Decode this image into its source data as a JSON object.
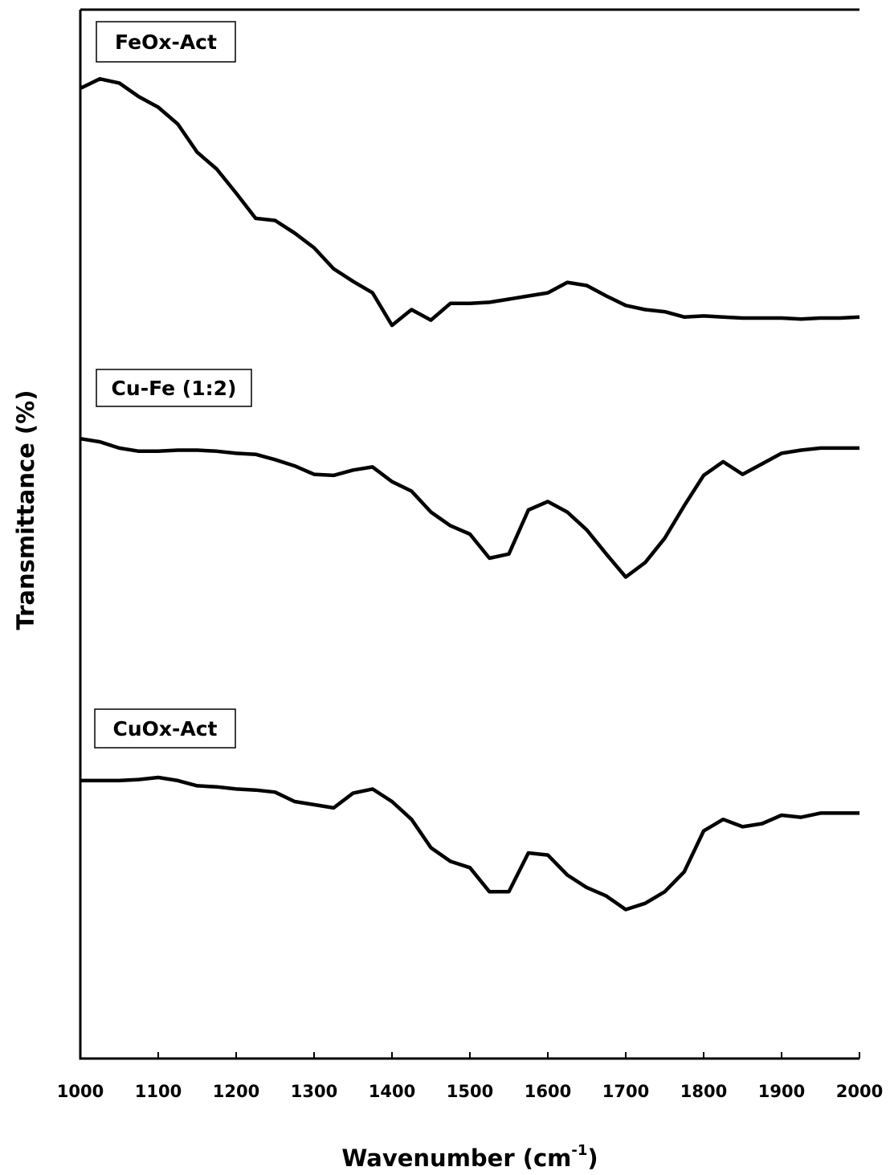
{
  "chart_data": {
    "type": "line",
    "xlabel_parts": [
      "Wavenumber (cm",
      "-1",
      ")"
    ],
    "ylabel": "Transmittance (%)",
    "xlim": [
      1000,
      2000
    ],
    "xticks": [
      1000,
      1100,
      1200,
      1300,
      1400,
      1500,
      1600,
      1700,
      1800,
      1900,
      2000
    ],
    "ylim": [
      0,
      100
    ],
    "x": [
      1000,
      1025,
      1050,
      1075,
      1100,
      1125,
      1150,
      1175,
      1200,
      1225,
      1250,
      1275,
      1300,
      1325,
      1350,
      1375,
      1400,
      1425,
      1450,
      1475,
      1500,
      1525,
      1550,
      1575,
      1600,
      1625,
      1650,
      1675,
      1700,
      1725,
      1750,
      1775,
      1800,
      1825,
      1850,
      1875,
      1900,
      1925,
      1950,
      1975,
      2000
    ],
    "series": [
      {
        "name": "FeOx-Act",
        "color": "#000000",
        "values": [
          92.5,
          93.4,
          93.0,
          91.7,
          90.7,
          89.1,
          86.4,
          84.8,
          82.5,
          80.1,
          79.9,
          78.7,
          77.3,
          75.3,
          74.1,
          73.0,
          69.9,
          71.4,
          70.4,
          72.0,
          72.0,
          72.1,
          72.4,
          72.7,
          73.0,
          74.0,
          73.7,
          72.7,
          71.8,
          71.4,
          71.2,
          70.7,
          70.8,
          70.7,
          70.6,
          70.6,
          70.6,
          70.5,
          70.6,
          70.6,
          70.7
        ]
      },
      {
        "name": "Cu-Fe (1:2)",
        "color": "#000000",
        "values": [
          59.1,
          58.8,
          58.2,
          57.9,
          57.9,
          58.0,
          58.0,
          57.9,
          57.7,
          57.6,
          57.1,
          56.5,
          55.7,
          55.6,
          56.1,
          56.4,
          55.0,
          54.1,
          52.1,
          50.8,
          50.0,
          47.7,
          48.1,
          52.3,
          53.1,
          52.1,
          50.4,
          48.1,
          45.9,
          47.3,
          49.6,
          52.7,
          55.6,
          56.9,
          55.7,
          56.7,
          57.7,
          58.0,
          58.2,
          58.2,
          58.2
        ]
      },
      {
        "name": "CuOx-Act",
        "color": "#000000",
        "values": [
          26.5,
          26.5,
          26.5,
          26.6,
          26.8,
          26.5,
          26.0,
          25.9,
          25.7,
          25.6,
          25.4,
          24.5,
          24.2,
          23.9,
          25.3,
          25.7,
          24.5,
          22.8,
          20.1,
          18.8,
          18.2,
          15.9,
          15.9,
          19.6,
          19.4,
          17.5,
          16.3,
          15.5,
          14.2,
          14.8,
          15.9,
          17.8,
          21.7,
          22.8,
          22.1,
          22.4,
          23.2,
          23.0,
          23.4,
          23.4,
          23.4
        ]
      }
    ]
  }
}
